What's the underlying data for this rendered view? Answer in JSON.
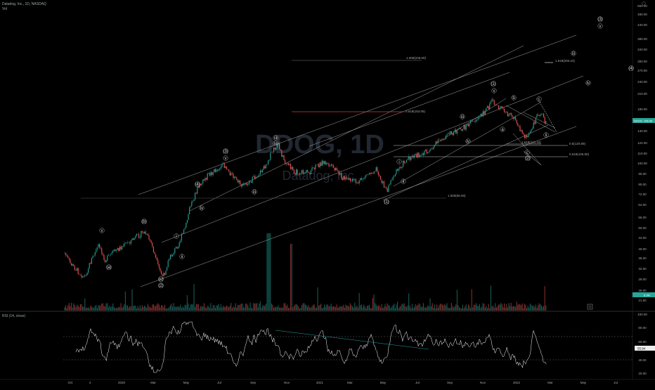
{
  "header": {
    "symbol_line": "Datadog, Inc., 1D, NASDAQ",
    "volume_label": "Vol"
  },
  "watermark": {
    "ticker": "DDOG, 1D",
    "company": "Datadog, Inc."
  },
  "rsi": {
    "label": "RSI (14, close)",
    "current_value": "55.94",
    "scale": [
      "100.00",
      "80.00",
      "60.00",
      "40.00",
      "20.00"
    ]
  },
  "price_scale": [
    "560.00",
    "480.00",
    "440.00",
    "380.00",
    "340.00",
    "300.00",
    "270.00",
    "240.00",
    "210.00",
    "180.00",
    "160.00",
    "140.00",
    "124.00",
    "110.00",
    "100.00",
    "90.00",
    "80.00",
    "72.00",
    "64.00",
    "56.00",
    "50.00",
    "44.00",
    "40.00",
    "36.00",
    "32.50",
    "29.00",
    "25.00",
    "21.50"
  ],
  "price_tag": {
    "label": "DDOG",
    "value": "156.56"
  },
  "volume_tag": {
    "value": "6.0M"
  },
  "time_axis": [
    "Oct",
    "4",
    "2020",
    "Mar",
    "May",
    "Jul",
    "Sep",
    "Nov",
    "2021",
    "Mar",
    "May",
    "Jul",
    "Sep",
    "Nov",
    "2022",
    "Mar",
    "May",
    "Jul"
  ],
  "wave_labels": [
    "(3)",
    "v",
    "iii",
    "(4)",
    "iv",
    "(1)",
    "v",
    "iii",
    "b",
    "i",
    "ii",
    "iv",
    "a",
    "c",
    "(2)",
    "(3)",
    "v",
    "(4)",
    "iii",
    "iv",
    "i",
    "ii",
    "(b)",
    "(a)",
    "(c)",
    "(2)",
    "i",
    "ii",
    "iii",
    "iv",
    "v",
    "(1)",
    "(2)"
  ],
  "fib_labels": {
    "f1": "1.618(293.24)",
    "f2": "0.618(153.05)",
    "f3": "0.5(120.59)",
    "f4": "1.618(121.44)",
    "f5": "0.618(106.80)",
    "f6": "1.000(245.00)",
    "f7": "1.000(66.00)"
  },
  "colors": {
    "bull": "#26a69a",
    "bear": "#ef5350",
    "rsi_line": "#ffffff",
    "channel": "#bbbbbb",
    "fib_red": "#e53935"
  },
  "icons": {
    "settings": "gear-icon"
  }
}
